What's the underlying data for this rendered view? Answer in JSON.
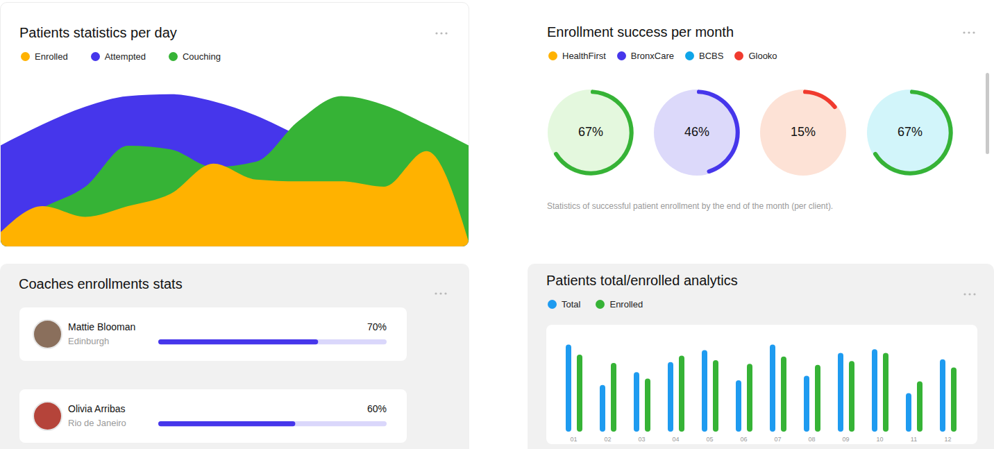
{
  "chart_data": [
    {
      "type": "area",
      "title": "Patients statistics per day",
      "legend": "top left",
      "tick_labels": false,
      "categories": [
        null,
        null,
        null,
        null,
        null,
        null,
        null,
        null,
        null,
        null,
        null,
        null
      ],
      "ylim": [
        0,
        100
      ],
      "series": [
        {
          "name": "Enrolled",
          "color": "#FFB200",
          "values": [
            8,
            23,
            17,
            23,
            30,
            47,
            38,
            37,
            37,
            34,
            54,
            2
          ]
        },
        {
          "name": "Attempted",
          "color": "#4636EB",
          "values": [
            57,
            69,
            79,
            85,
            86,
            82,
            74,
            63,
            55,
            50,
            45,
            40
          ]
        },
        {
          "name": "Couching",
          "color": "#36B336",
          "values": [
            6,
            22,
            34,
            57,
            55,
            45,
            48,
            71,
            85,
            80,
            69,
            57
          ]
        }
      ]
    },
    {
      "type": "donut",
      "title": "Enrollment success per month",
      "legend": "top left",
      "data_labels": true,
      "categories": [
        "HealthFirst",
        "BronxCare",
        "BCBS",
        "Glooko"
      ],
      "values": [
        67,
        46,
        15,
        67
      ],
      "value_labels": [
        "67%",
        "46%",
        "15%",
        "67%"
      ],
      "colors": [
        "#FFB200",
        "#4636EB",
        "#0EA5E9",
        "#F03A2E"
      ],
      "ylim": [
        0,
        100
      ],
      "annotations": [
        "Statistics of successful patient enrollment by the end of the month (per client)."
      ]
    },
    {
      "type": "progress",
      "title": "Coaches enrollments stats",
      "orientation": "horizontal",
      "data_labels": true,
      "tick_labels": false,
      "categories": [
        "Mattie Blooman",
        "Olivia Arribas"
      ],
      "locations": [
        "Edinburgh",
        "Rio de Janeiro"
      ],
      "values": [
        70,
        60
      ],
      "value_labels": [
        "70%",
        "60%"
      ],
      "color": "#4636EB",
      "xlim": [
        0,
        100
      ]
    },
    {
      "type": "bar",
      "title": "Patients total/enrolled analytics",
      "legend": "top left",
      "tick_labels": "x",
      "categories": [
        "01",
        "02",
        "03",
        "04",
        "05",
        "06",
        "07",
        "08",
        "09",
        "10",
        "11",
        "12"
      ],
      "ylim": [
        0,
        100
      ],
      "series": [
        {
          "name": "Total",
          "color": "#1E9BF0",
          "values": [
            95,
            51,
            65,
            76,
            89,
            56,
            95,
            61,
            86,
            90,
            42,
            79
          ]
        },
        {
          "name": "Enrolled",
          "color": "#36B336",
          "values": [
            84,
            75,
            58,
            83,
            78,
            74,
            82,
            73,
            77,
            86,
            55,
            70
          ]
        }
      ]
    }
  ]
}
